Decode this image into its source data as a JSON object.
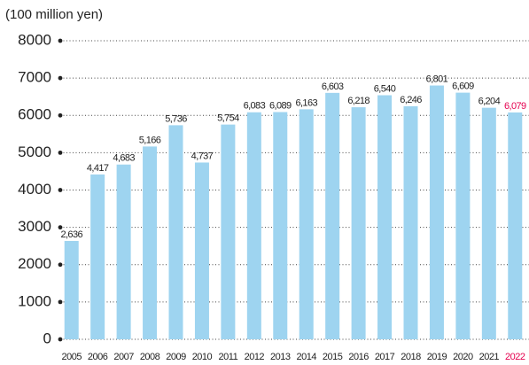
{
  "chart_data": {
    "type": "bar",
    "y_axis_label": "(100 million yen)",
    "categories": [
      "2005",
      "2006",
      "2007",
      "2008",
      "2009",
      "2010",
      "2011",
      "2012",
      "2013",
      "2014",
      "2015",
      "2016",
      "2017",
      "2018",
      "2019",
      "2020",
      "2021",
      "2022"
    ],
    "values": [
      2636,
      4417,
      4683,
      5166,
      5736,
      4737,
      5754,
      6083,
      6089,
      6163,
      6603,
      6218,
      6540,
      6246,
      6801,
      6609,
      6204,
      6079
    ],
    "value_labels": [
      "2,636",
      "4,417",
      "4,683",
      "5,166",
      "5,736",
      "4,737",
      "5,754",
      "6,083",
      "6,089",
      "6,163",
      "6,603",
      "6,218",
      "6,540",
      "6,246",
      "6,801",
      "6,609",
      "6,204",
      "6,079"
    ],
    "color": "#9ed4f0",
    "label_colors": [
      "#222",
      "#222",
      "#222",
      "#222",
      "#222",
      "#222",
      "#222",
      "#222",
      "#222",
      "#222",
      "#222",
      "#222",
      "#222",
      "#222",
      "#222",
      "#222",
      "#222",
      "#e5004f"
    ],
    "ylim": [
      0,
      8000
    ],
    "yticks": [
      0,
      1000,
      2000,
      3000,
      4000,
      5000,
      6000,
      7000,
      8000
    ],
    "grid": true
  }
}
